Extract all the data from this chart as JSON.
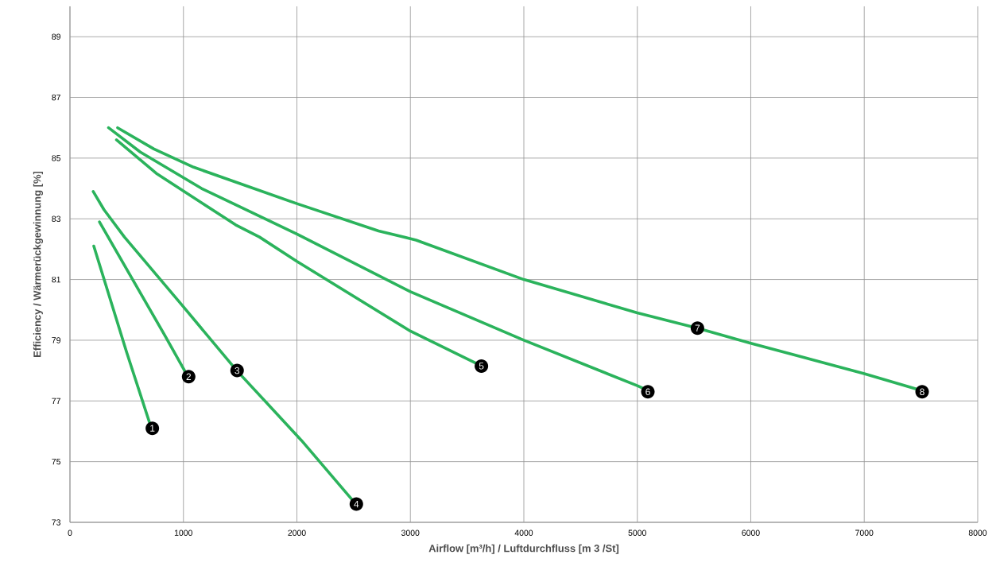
{
  "chart_data": {
    "type": "line",
    "xlabel": "Airflow [m³/h] / Luftdurchfluss [m 3 /St]",
    "ylabel": "Efficiency / Wärmerückgewinnung [%]",
    "xlim": [
      0,
      8000
    ],
    "xticks": [
      0,
      1000,
      2000,
      3000,
      4000,
      5000,
      6000,
      7000,
      8000
    ],
    "ylim": [
      73,
      90
    ],
    "yticks": [
      73,
      75,
      77,
      79,
      81,
      83,
      85,
      87,
      89
    ],
    "grid": true,
    "series": [
      {
        "color": "#2bb35c",
        "x": [
          210,
          500,
          700
        ],
        "values": [
          82.1,
          78.6,
          76.3
        ]
      },
      {
        "color": "#2bb35c",
        "x": [
          260,
          830,
          1010
        ],
        "values": [
          82.9,
          79.2,
          78.0
        ]
      },
      {
        "color": "#2bb35c",
        "x": [
          205,
          300,
          480,
          1000,
          1470,
          2040,
          2520
        ],
        "values": [
          83.9,
          83.3,
          82.4,
          80.1,
          78.0,
          75.7,
          73.6
        ]
      },
      {
        "color": "#2bb35c",
        "x": [
          410,
          760,
          1460,
          1670,
          2000,
          3000,
          3600
        ],
        "values": [
          85.6,
          84.5,
          82.8,
          82.4,
          81.6,
          79.3,
          78.2
        ]
      },
      {
        "color": "#2bb35c",
        "x": [
          340,
          620,
          1160,
          2000,
          3000,
          4000,
          5000,
          5090
        ],
        "values": [
          86.0,
          85.2,
          84.0,
          82.5,
          80.6,
          79.0,
          77.5,
          77.35
        ]
      },
      {
        "color": "#2bb35c",
        "x": [
          420,
          740,
          1090,
          2000,
          2720,
          3050,
          4000,
          5000,
          5530,
          6000,
          7000,
          7500
        ],
        "values": [
          86.0,
          85.3,
          84.7,
          83.5,
          82.6,
          82.3,
          81.0,
          79.9,
          79.4,
          78.9,
          77.9,
          77.35
        ]
      }
    ],
    "annotations": [
      {
        "text": "1",
        "x": 726,
        "y": 76.1
      },
      {
        "text": "2",
        "x": 1046,
        "y": 77.8
      },
      {
        "text": "3",
        "x": 1473,
        "y": 78.0
      },
      {
        "text": "4",
        "x": 2524,
        "y": 73.6
      },
      {
        "text": "5",
        "x": 3626,
        "y": 78.15
      },
      {
        "text": "6",
        "x": 5093,
        "y": 77.3
      },
      {
        "text": "7",
        "x": 5530,
        "y": 79.4
      },
      {
        "text": "8",
        "x": 7510,
        "y": 77.3
      }
    ]
  }
}
